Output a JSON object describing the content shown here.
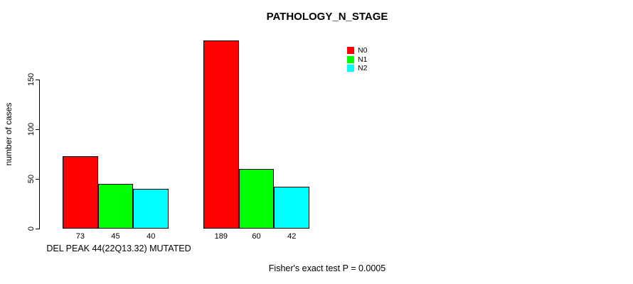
{
  "title": "PATHOLOGY_N_STAGE",
  "y_axis": {
    "label": "number of cases",
    "ticks": [
      0,
      50,
      100,
      150
    ]
  },
  "x_axis": {
    "group_label": "DEL PEAK 44(22Q13.32) MUTATED"
  },
  "footer": "Fisher's exact test P = 0.0005",
  "legend": {
    "position": "top-right",
    "entries": [
      {
        "label": "N0",
        "color": "#FF0000"
      },
      {
        "label": "N1",
        "color": "#00FF00"
      },
      {
        "label": "N2",
        "color": "#00FFFF"
      }
    ]
  },
  "chart_data": {
    "type": "bar",
    "title": "PATHOLOGY_N_STAGE",
    "categories": [
      "DEL PEAK 44(22Q13.32) MUTATED",
      ""
    ],
    "series": [
      {
        "name": "N0",
        "color": "#FF0000",
        "values": [
          73,
          189
        ]
      },
      {
        "name": "N1",
        "color": "#00FF00",
        "values": [
          45,
          60
        ]
      },
      {
        "name": "N2",
        "color": "#00FFFF",
        "values": [
          40,
          42
        ]
      }
    ],
    "bar_value_labels": [
      [
        73,
        45,
        40
      ],
      [
        189,
        60,
        42
      ]
    ],
    "xlabel": "DEL PEAK 44(22Q13.32) MUTATED",
    "ylabel": "number of cases",
    "yticks": [
      0,
      50,
      100,
      150
    ],
    "ylim": [
      0,
      190
    ],
    "grid": false,
    "bar_border_color": "#000000",
    "legend_position": "top-right",
    "annotation": "Fisher's exact test P = 0.0005"
  }
}
